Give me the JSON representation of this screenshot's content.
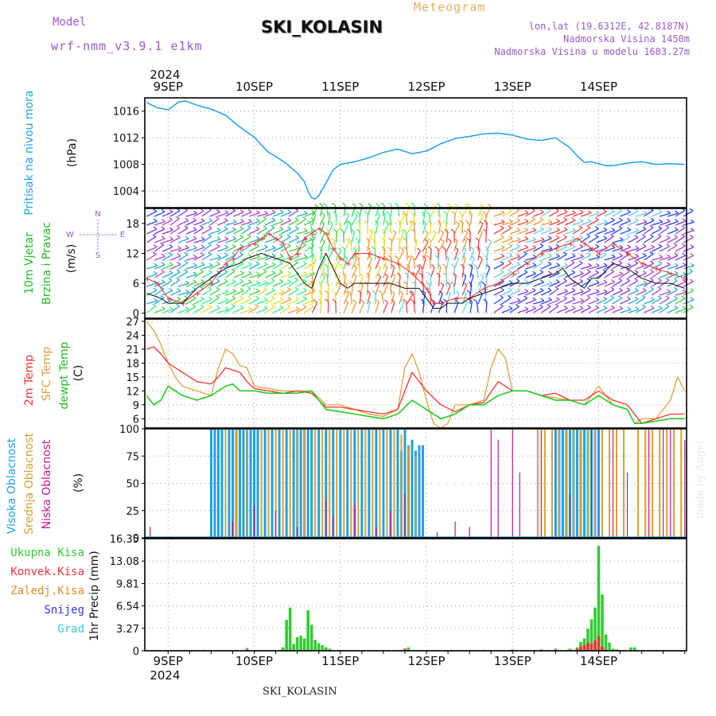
{
  "header": {
    "model_label": "Model",
    "model_value": "wrf-nmm_v3.9.1 e1km",
    "station": "SKI_KOLASIN",
    "meteogram_label": "Meteogram",
    "coords": "lon,lat (19.6312E, 42.8187N)",
    "elevation": "Nadmorska Visina 1450m",
    "model_elevation": "Nadmorska Visina u modelu 1683.27m"
  },
  "footer": {
    "station": "SKI_KOLASIN",
    "credit": "made by Angel"
  },
  "time_axis": {
    "year": "2024",
    "days": [
      "9SEP",
      "10SEP",
      "11SEP",
      "12SEP",
      "13SEP",
      "14SEP"
    ],
    "start_hour": 0,
    "end_hour": 144
  },
  "colors": {
    "pressure": "#1ea1e8",
    "wind_label": "#22bb22",
    "wind_speed": "#111111",
    "temp2m": "#ee3333",
    "sfc_temp": "#dda040",
    "dewpoint": "#22cc22",
    "high_cloud": "#1ea1e8",
    "mid_cloud": "#d4a030",
    "low_cloud": "#c0188c",
    "precip_total": "#33cc33",
    "precip_conv": "#ee3333",
    "precip_freezing": "#ee8822",
    "precip_snow": "#3333ee",
    "precip_hail": "#33cccc"
  },
  "chart_data": [
    {
      "type": "line",
      "panel": "pressure",
      "ylabel_main": "Pritisak na nivou mora",
      "unit": "(hPa)",
      "ylim": [
        1001.5,
        1018
      ],
      "yticks": [
        "1004",
        "1008",
        "1012",
        "1016"
      ],
      "series": [
        {
          "x": [
            -6,
            -3,
            0,
            3,
            5,
            8,
            12,
            16,
            20,
            24,
            26,
            28,
            30,
            33,
            36,
            38,
            39,
            40,
            41,
            42,
            44,
            46,
            48,
            52,
            56,
            60,
            64,
            68,
            72,
            76,
            80,
            84,
            88,
            92,
            96,
            100,
            104,
            108,
            112,
            114,
            116,
            118,
            120,
            122,
            124,
            128,
            132,
            136,
            140,
            144
          ],
          "y": [
            1017.3,
            1016.5,
            1016.2,
            1017.4,
            1017.5,
            1016.9,
            1016.3,
            1015.4,
            1013.6,
            1012.1,
            1010.9,
            1009.8,
            1009.2,
            1008.1,
            1006.7,
            1005.4,
            1003.9,
            1003.0,
            1002.8,
            1003.3,
            1005.2,
            1007.2,
            1008.0,
            1008.4,
            1009.0,
            1009.8,
            1010.3,
            1009.6,
            1010.0,
            1011.1,
            1011.9,
            1012.2,
            1012.6,
            1012.7,
            1012.4,
            1011.8,
            1011.6,
            1012.0,
            1010.5,
            1009.3,
            1008.3,
            1008.4,
            1008.1,
            1007.8,
            1007.8,
            1008.2,
            1008.4,
            1008.0,
            1008.1,
            1008.0
          ]
        }
      ]
    },
    {
      "type": "line",
      "panel": "wind",
      "ylabel_main": "10m Vjetar",
      "ylabel_sub": "Brzina i Pravac",
      "unit": "(m/s)",
      "compass": [
        "N",
        "E",
        "W",
        "S"
      ],
      "ylim": [
        -1,
        21
      ],
      "yticks": [
        "0",
        "6",
        "12",
        "18"
      ],
      "series": [
        {
          "name": "speed",
          "x": [
            -6,
            -2,
            0,
            4,
            8,
            12,
            16,
            20,
            22,
            26,
            30,
            34,
            36,
            38,
            40,
            42,
            44,
            46,
            48,
            50,
            52,
            54,
            56,
            60,
            62,
            66,
            70,
            72,
            74,
            76,
            78,
            80,
            82,
            84,
            88,
            92,
            96,
            100,
            104,
            108,
            110,
            112,
            114,
            116,
            118,
            120,
            124,
            128,
            132,
            136,
            140,
            144
          ],
          "y": [
            4,
            3,
            2,
            2,
            5,
            7,
            9,
            10,
            11,
            12,
            11,
            10,
            8,
            6,
            5,
            9,
            12,
            9,
            6,
            5,
            6,
            6,
            6,
            6,
            6,
            5,
            5,
            3,
            1,
            1,
            2,
            2,
            2,
            3,
            4,
            5,
            6,
            6,
            7,
            8,
            9,
            7,
            6,
            5,
            7,
            7,
            10,
            9,
            7,
            6,
            6,
            5
          ]
        },
        {
          "name": "gust",
          "x": [
            -6,
            -3,
            0,
            4,
            8,
            12,
            16,
            18,
            20,
            24,
            26,
            28,
            30,
            32,
            34,
            36,
            38,
            40,
            42,
            44,
            46,
            48,
            50,
            52,
            56,
            60,
            64,
            68,
            72,
            74,
            76,
            80,
            84,
            88,
            92,
            96,
            100,
            104,
            108,
            112,
            114,
            116,
            118,
            120,
            124,
            128,
            132,
            136,
            140,
            144
          ],
          "y": [
            7,
            6,
            3,
            2,
            4,
            6,
            10,
            11,
            13,
            14,
            15,
            16,
            15,
            14,
            11,
            12,
            15,
            16,
            17,
            16,
            13,
            11,
            10,
            12,
            12,
            11,
            10,
            8,
            5,
            2,
            2,
            3,
            3,
            5,
            6,
            8,
            10,
            12,
            13,
            14,
            15,
            14,
            13,
            12,
            14,
            12,
            10,
            9,
            8,
            7
          ]
        }
      ]
    },
    {
      "type": "line",
      "panel": "temperature",
      "ylabels": [
        "2m Temp",
        "SFC Temp",
        "dewpt Temp"
      ],
      "unit": "(C)",
      "ylim": [
        4,
        27.5
      ],
      "yticks": [
        "6",
        "9",
        "12",
        "15",
        "18",
        "21",
        "24",
        "27"
      ],
      "series": [
        {
          "name": "2m Temp",
          "x": [
            -6,
            -4,
            -2,
            0,
            4,
            8,
            12,
            14,
            16,
            18,
            20,
            22,
            24,
            28,
            32,
            36,
            40,
            44,
            48,
            52,
            56,
            60,
            64,
            68,
            72,
            76,
            80,
            84,
            88,
            92,
            96,
            100,
            104,
            108,
            112,
            116,
            120,
            124,
            128,
            132,
            136,
            140,
            144
          ],
          "y": [
            21,
            21.5,
            20,
            18,
            16,
            14,
            13.5,
            15,
            17,
            16.5,
            16,
            14,
            12.5,
            12,
            11.5,
            12,
            11.5,
            8.5,
            8.5,
            8,
            7.5,
            7,
            8,
            16,
            12,
            9,
            7.5,
            9,
            9.5,
            14,
            12,
            12,
            11,
            11.5,
            10,
            10,
            12,
            10,
            9,
            5,
            6,
            7,
            7
          ]
        },
        {
          "name": "SFC Temp",
          "x": [
            -6,
            -4,
            -2,
            0,
            2,
            4,
            8,
            12,
            14,
            16,
            18,
            20,
            22,
            24,
            28,
            32,
            36,
            40,
            44,
            48,
            52,
            56,
            60,
            64,
            66,
            68,
            70,
            72,
            74,
            76,
            78,
            80,
            84,
            88,
            90,
            92,
            94,
            96,
            100,
            104,
            108,
            112,
            116,
            120,
            124,
            128,
            130,
            132,
            136,
            140,
            142,
            144
          ],
          "y": [
            27,
            25,
            22,
            18,
            15,
            13,
            12,
            11,
            17,
            21,
            20,
            17.5,
            17,
            13,
            12.5,
            12,
            12,
            12,
            9,
            9,
            8,
            7,
            6.5,
            8,
            17,
            20,
            16,
            10,
            5,
            4,
            5,
            9,
            9,
            10,
            17,
            21,
            19,
            12,
            12,
            11,
            10.5,
            10,
            9,
            13,
            9,
            8,
            5,
            6,
            6,
            10,
            15,
            12
          ]
        },
        {
          "name": "dewpt Temp",
          "x": [
            -6,
            -4,
            -2,
            0,
            4,
            8,
            12,
            14,
            16,
            18,
            20,
            24,
            28,
            32,
            36,
            40,
            44,
            48,
            52,
            56,
            60,
            64,
            68,
            72,
            76,
            80,
            84,
            88,
            92,
            96,
            100,
            104,
            108,
            112,
            116,
            120,
            124,
            128,
            130,
            132,
            136,
            140,
            144
          ],
          "y": [
            11,
            9,
            10,
            13,
            11,
            10,
            11,
            12,
            13,
            13.5,
            12,
            12,
            11.5,
            11.5,
            11.5,
            12,
            8,
            7.5,
            7,
            6.5,
            6,
            7,
            10,
            8,
            6,
            7,
            9,
            9,
            11,
            12,
            12,
            11,
            10,
            10,
            9,
            11,
            9,
            8,
            5,
            5,
            5.5,
            6,
            6
          ]
        }
      ]
    },
    {
      "type": "bar",
      "panel": "cloud",
      "ylabels": [
        "Visoka Oblacnost",
        "Srednja Oblacnost",
        "Niska Oblacnost"
      ],
      "unit": "(%)",
      "ylim": [
        0,
        100
      ],
      "yticks": [
        "0",
        "25",
        "50",
        "75",
        "100"
      ],
      "series": [
        {
          "name": "Visoka Oblacnost",
          "x": [
            12,
            13,
            14,
            15,
            17,
            18,
            19,
            20,
            21,
            22,
            23,
            24,
            25,
            27,
            29,
            31,
            33,
            35,
            36,
            37,
            38,
            39,
            40,
            42,
            44,
            46,
            48,
            50,
            52,
            54,
            56,
            58,
            60,
            62,
            64,
            65,
            66,
            67,
            68,
            69,
            70,
            71,
            108,
            109,
            110,
            111,
            112,
            113,
            114,
            115,
            116,
            117,
            118,
            119,
            120
          ],
          "y": [
            100,
            100,
            100,
            100,
            100,
            100,
            100,
            100,
            100,
            100,
            100,
            100,
            100,
            100,
            100,
            100,
            100,
            100,
            100,
            100,
            100,
            100,
            100,
            100,
            100,
            100,
            100,
            100,
            100,
            100,
            100,
            100,
            100,
            100,
            100,
            80,
            100,
            85,
            90,
            80,
            85,
            85,
            100,
            100,
            100,
            100,
            100,
            100,
            100,
            100,
            100,
            100,
            100,
            100,
            100
          ]
        },
        {
          "name": "Srednja Oblacnost",
          "x": [
            16,
            19,
            22,
            26,
            28,
            30,
            32,
            34,
            36,
            38,
            41,
            43,
            45,
            47,
            49,
            51,
            53,
            55,
            57,
            59,
            61,
            63,
            65,
            67,
            69,
            103,
            105,
            107,
            109,
            111,
            113,
            115,
            117,
            119,
            121,
            123,
            125,
            127,
            131,
            133,
            135,
            137,
            139,
            141,
            143
          ],
          "y": [
            100,
            100,
            100,
            100,
            100,
            100,
            100,
            100,
            100,
            100,
            100,
            100,
            100,
            100,
            100,
            100,
            100,
            100,
            100,
            100,
            100,
            100,
            95,
            85,
            75,
            100,
            100,
            100,
            100,
            100,
            100,
            100,
            100,
            100,
            100,
            100,
            100,
            100,
            100,
            100,
            100,
            100,
            100,
            100,
            100
          ]
        },
        {
          "name": "Niska Oblacnost",
          "x": [
            -5,
            18,
            24,
            30,
            36,
            44,
            46,
            52,
            58,
            62,
            66,
            75,
            80,
            84,
            90,
            92,
            96,
            98,
            104,
            112,
            118,
            124,
            128,
            134,
            138,
            140,
            144
          ],
          "y": [
            10,
            15,
            30,
            25,
            10,
            35,
            20,
            30,
            10,
            25,
            40,
            5,
            15,
            10,
            100,
            90,
            100,
            60,
            100,
            40,
            100,
            100,
            60,
            100,
            100,
            100,
            90
          ]
        }
      ]
    },
    {
      "type": "bar",
      "panel": "precip",
      "ylabel": "1hr Precip (mm)",
      "legend": [
        "Ukupna Kisa",
        "Konvek.Kisa",
        "Zaledj.Kisa",
        "Snijeg",
        "Grad"
      ],
      "ylim": [
        0,
        16.35
      ],
      "yticks": [
        "0",
        "3.27",
        "6.54",
        "9.81",
        "13.08",
        "16.35"
      ],
      "series": [
        {
          "name": "Ukupna Kisa",
          "x": [
            22,
            32,
            33,
            34,
            35,
            36,
            37,
            38,
            39,
            40,
            41,
            42,
            43,
            44,
            45,
            66,
            67,
            96,
            104,
            108,
            112,
            114,
            115,
            116,
            117,
            118,
            119,
            120,
            121,
            122,
            123,
            124,
            125,
            129,
            130
          ],
          "y": [
            0.4,
            0.5,
            4.5,
            6.3,
            1.0,
            2.0,
            2.2,
            1.8,
            5.9,
            3.8,
            1.6,
            1.1,
            0.8,
            0.5,
            0.3,
            0.3,
            0.5,
            0.2,
            0.2,
            0.3,
            0.3,
            0.5,
            1.3,
            1.8,
            3.2,
            4.6,
            6.3,
            15.3,
            8.2,
            2.4,
            1.2,
            0.3,
            0.2,
            0.5,
            0.5
          ]
        },
        {
          "name": "Konvek.Kisa",
          "x": [
            38,
            66,
            114,
            115,
            116,
            117,
            118,
            119,
            120,
            121,
            122
          ],
          "y": [
            0.1,
            0.3,
            0.3,
            0.6,
            0.8,
            1.2,
            1.0,
            1.5,
            2.1,
            0.6,
            0.2
          ]
        }
      ]
    }
  ]
}
